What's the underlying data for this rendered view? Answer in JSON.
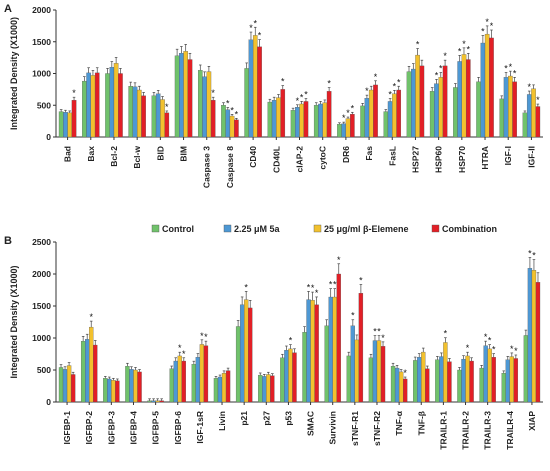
{
  "legend": [
    {
      "label": "Control",
      "color": "#70c26b"
    },
    {
      "label": "2.25 μM 5a",
      "color": "#4d98d4"
    },
    {
      "label": "25 μg/ml β-Elemene",
      "color": "#f2c12e"
    },
    {
      "label": "Combination",
      "color": "#e21f26"
    }
  ],
  "chart_data": [
    {
      "type": "bar",
      "panel_label": "A",
      "ylabel": "Integrated Density (X1000)",
      "ylim": [
        0,
        2000
      ],
      "yticks": [
        0,
        500,
        1000,
        1500,
        2000
      ],
      "grid": false,
      "categories": [
        "Bad",
        "Bax",
        "Bcl-2",
        "Bcl-w",
        "BID",
        "BIM",
        "Caspase 3",
        "Caspase 8",
        "CD40",
        "CD40L",
        "cIAP-2",
        "cytoC",
        "DR6",
        "Fas",
        "FasL",
        "HSP27",
        "HSP60",
        "HSP70",
        "HTRA",
        "IGF-I",
        "IGF-II"
      ],
      "series": [
        {
          "name": "Control",
          "values": [
            400,
            880,
            1000,
            800,
            650,
            1280,
            1050,
            500,
            1080,
            550,
            420,
            500,
            200,
            490,
            400,
            1030,
            720,
            780,
            870,
            600,
            380
          ]
        },
        {
          "name": "2.25 μM 5a",
          "values": [
            390,
            1010,
            1100,
            790,
            680,
            1320,
            950,
            430,
            1530,
            580,
            470,
            520,
            210,
            610,
            560,
            1070,
            840,
            1190,
            1480,
            940,
            670
          ]
        },
        {
          "name": "25 μg/ml β-Elemene",
          "values": [
            380,
            970,
            1160,
            740,
            590,
            1350,
            1030,
            330,
            1600,
            620,
            520,
            540,
            290,
            740,
            680,
            1290,
            940,
            1300,
            1620,
            960,
            760
          ]
        },
        {
          "name": "Combination",
          "values": [
            580,
            1010,
            1000,
            650,
            380,
            1220,
            580,
            270,
            1420,
            750,
            560,
            720,
            360,
            820,
            740,
            1120,
            1120,
            1220,
            1560,
            870,
            480
          ]
        }
      ],
      "significance": [
        [
          false,
          false,
          false,
          true
        ],
        [
          false,
          false,
          false,
          false
        ],
        [
          false,
          false,
          false,
          false
        ],
        [
          false,
          false,
          false,
          false
        ],
        [
          false,
          false,
          false,
          true
        ],
        [
          false,
          false,
          false,
          false
        ],
        [
          false,
          false,
          false,
          true
        ],
        [
          false,
          true,
          true,
          true
        ],
        [
          false,
          true,
          true,
          true
        ],
        [
          false,
          false,
          false,
          true
        ],
        [
          false,
          true,
          true,
          true
        ],
        [
          false,
          false,
          false,
          true
        ],
        [
          false,
          true,
          true,
          true
        ],
        [
          false,
          true,
          false,
          true
        ],
        [
          false,
          true,
          true,
          true
        ],
        [
          false,
          false,
          true,
          false
        ],
        [
          false,
          true,
          true,
          true
        ],
        [
          false,
          true,
          true,
          true
        ],
        [
          false,
          true,
          true,
          true
        ],
        [
          false,
          true,
          true,
          true
        ],
        [
          false,
          true,
          false,
          true
        ]
      ]
    },
    {
      "type": "bar",
      "panel_label": "B",
      "ylabel": "Integrated Density (X1000)",
      "ylim": [
        0,
        2500
      ],
      "yticks": [
        0,
        500,
        1000,
        1500,
        2000,
        2500
      ],
      "grid": false,
      "categories": [
        "IGFBP-1",
        "IGFBP-2",
        "IGFBP-3",
        "IGFBP-4",
        "IGFBP-5",
        "IGFBP-6",
        "IGF-1sR",
        "Livin",
        "p21",
        "p27",
        "p53",
        "SMAC",
        "Survivin",
        "sTNF-R1",
        "sTNF-R2",
        "TNF-α",
        "TNF-β",
        "TRAILR-1",
        "TRAILR-2",
        "TRAILR-3",
        "TRAILR-4",
        "XIAP"
      ],
      "series": [
        {
          "name": "Control",
          "values": [
            540,
            950,
            370,
            560,
            20,
            520,
            590,
            370,
            1180,
            420,
            690,
            1090,
            1190,
            720,
            690,
            560,
            650,
            660,
            500,
            530,
            450,
            1040
          ]
        },
        {
          "name": "2.25 μM 5a",
          "values": [
            510,
            980,
            360,
            510,
            20,
            640,
            700,
            390,
            1520,
            400,
            810,
            1600,
            1640,
            1190,
            960,
            530,
            700,
            710,
            670,
            880,
            660,
            2090
          ]
        },
        {
          "name": "25 μg/ml β-Elemene",
          "values": [
            570,
            1170,
            340,
            500,
            20,
            720,
            900,
            450,
            1600,
            430,
            830,
            1590,
            1640,
            970,
            960,
            470,
            780,
            930,
            720,
            830,
            710,
            2060
          ]
        },
        {
          "name": "Combination",
          "values": [
            430,
            890,
            330,
            470,
            20,
            640,
            880,
            490,
            1470,
            410,
            770,
            1520,
            2000,
            1700,
            870,
            360,
            520,
            630,
            640,
            700,
            680,
            1870
          ]
        }
      ],
      "significance": [
        [
          false,
          false,
          false,
          false
        ],
        [
          false,
          false,
          true,
          false
        ],
        [
          false,
          false,
          false,
          false
        ],
        [
          false,
          false,
          false,
          false
        ],
        [
          false,
          false,
          false,
          false
        ],
        [
          false,
          false,
          true,
          true
        ],
        [
          false,
          false,
          true,
          true
        ],
        [
          false,
          false,
          false,
          false
        ],
        [
          false,
          false,
          true,
          false
        ],
        [
          false,
          false,
          false,
          false
        ],
        [
          false,
          false,
          true,
          false
        ],
        [
          false,
          true,
          true,
          true
        ],
        [
          false,
          true,
          true,
          true
        ],
        [
          false,
          true,
          false,
          true
        ],
        [
          false,
          true,
          true,
          true
        ],
        [
          false,
          false,
          false,
          true
        ],
        [
          false,
          false,
          false,
          false
        ],
        [
          false,
          false,
          true,
          false
        ],
        [
          false,
          false,
          true,
          false
        ],
        [
          false,
          true,
          true,
          true
        ],
        [
          false,
          false,
          true,
          true
        ],
        [
          false,
          true,
          true,
          false
        ]
      ]
    }
  ],
  "significance_marker": "*"
}
